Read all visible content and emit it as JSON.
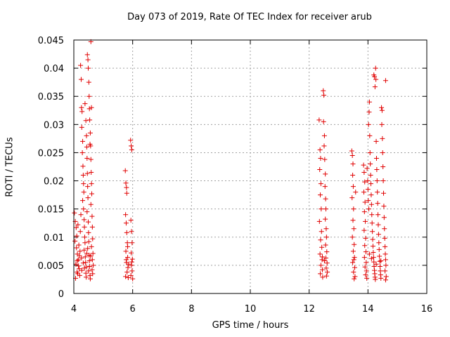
{
  "chart_data": {
    "type": "scatter",
    "title": "Day 073 of 2019, Rate Of TEC Index for receiver arub",
    "xlabel": "GPS time / hours",
    "ylabel": "ROTI / TECUs",
    "xlim": [
      4,
      16
    ],
    "ylim": [
      0,
      0.045
    ],
    "xticks": [
      "4",
      "6",
      "8",
      "10",
      "12",
      "14",
      "16"
    ],
    "yticks": [
      "0",
      "0.005",
      "0.01",
      "0.015",
      "0.02",
      "0.025",
      "0.03",
      "0.035",
      "0.04",
      "0.045"
    ],
    "grid": true,
    "marker": "+",
    "color": "#e00000",
    "series": [
      {
        "name": "ROTI",
        "points": [
          [
            4.02,
            0.0143
          ],
          [
            4.05,
            0.0128
          ],
          [
            4.08,
            0.0117
          ],
          [
            4.1,
            0.0102
          ],
          [
            4.04,
            0.0093
          ],
          [
            4.09,
            0.0081
          ],
          [
            4.12,
            0.007
          ],
          [
            4.15,
            0.006
          ],
          [
            4.07,
            0.0052
          ],
          [
            4.18,
            0.0044
          ],
          [
            4.11,
            0.0038
          ],
          [
            4.2,
            0.0032
          ],
          [
            4.06,
            0.0027
          ],
          [
            4.14,
            0.0122
          ],
          [
            4.17,
            0.0086
          ],
          [
            4.19,
            0.0067
          ],
          [
            4.22,
            0.011
          ],
          [
            4.24,
            0.014
          ],
          [
            4.23,
            0.0405
          ],
          [
            4.25,
            0.038
          ],
          [
            4.26,
            0.033
          ],
          [
            4.28,
            0.0323
          ],
          [
            4.27,
            0.0295
          ],
          [
            4.3,
            0.027
          ],
          [
            4.29,
            0.025
          ],
          [
            4.31,
            0.0226
          ],
          [
            4.32,
            0.021
          ],
          [
            4.33,
            0.0195
          ],
          [
            4.34,
            0.018
          ],
          [
            4.3,
            0.0165
          ],
          [
            4.33,
            0.015
          ],
          [
            4.35,
            0.0131
          ],
          [
            4.36,
            0.0118
          ],
          [
            4.37,
            0.01
          ],
          [
            4.38,
            0.009
          ],
          [
            4.35,
            0.0077
          ],
          [
            4.39,
            0.0065
          ],
          [
            4.4,
            0.0055
          ],
          [
            4.36,
            0.0045
          ],
          [
            4.41,
            0.0036
          ],
          [
            4.42,
            0.0029
          ],
          [
            4.38,
            0.0337
          ],
          [
            4.41,
            0.0307
          ],
          [
            4.43,
            0.028
          ],
          [
            4.44,
            0.026
          ],
          [
            4.45,
            0.024
          ],
          [
            4.46,
            0.0213
          ],
          [
            4.47,
            0.019
          ],
          [
            4.48,
            0.017
          ],
          [
            4.45,
            0.0145
          ],
          [
            4.49,
            0.0127
          ],
          [
            4.5,
            0.0108
          ],
          [
            4.51,
            0.0092
          ],
          [
            4.47,
            0.008
          ],
          [
            4.52,
            0.0068
          ],
          [
            4.53,
            0.0058
          ],
          [
            4.54,
            0.0048
          ],
          [
            4.5,
            0.004
          ],
          [
            4.55,
            0.0032
          ],
          [
            4.56,
            0.0026
          ],
          [
            4.46,
            0.0424
          ],
          [
            4.48,
            0.0415
          ],
          [
            4.49,
            0.04
          ],
          [
            4.51,
            0.0375
          ],
          [
            4.52,
            0.035
          ],
          [
            4.53,
            0.0328
          ],
          [
            4.54,
            0.0308
          ],
          [
            4.56,
            0.0285
          ],
          [
            4.57,
            0.0262
          ],
          [
            4.58,
            0.0238
          ],
          [
            4.59,
            0.0215
          ],
          [
            4.6,
            0.0195
          ],
          [
            4.61,
            0.0177
          ],
          [
            4.58,
            0.0158
          ],
          [
            4.62,
            0.0137
          ],
          [
            4.63,
            0.0118
          ],
          [
            4.64,
            0.0097
          ],
          [
            4.6,
            0.0083
          ],
          [
            4.65,
            0.0071
          ],
          [
            4.63,
            0.006
          ],
          [
            4.66,
            0.005
          ],
          [
            4.62,
            0.0042
          ],
          [
            4.64,
            0.0035
          ],
          [
            4.58,
            0.0447
          ],
          [
            4.6,
            0.033
          ],
          [
            4.55,
            0.0265
          ],
          [
            4.12,
            0.0058
          ],
          [
            4.16,
            0.0049
          ],
          [
            4.21,
            0.0075
          ],
          [
            4.26,
            0.0063
          ],
          [
            4.32,
            0.0054
          ],
          [
            4.44,
            0.0071
          ],
          [
            4.57,
            0.0066
          ],
          [
            4.13,
            0.0035
          ],
          [
            4.27,
            0.0041
          ],
          [
            4.43,
            0.0047
          ],
          [
            5.75,
            0.0218
          ],
          [
            5.77,
            0.0196
          ],
          [
            5.79,
            0.0188
          ],
          [
            5.8,
            0.0178
          ],
          [
            5.76,
            0.014
          ],
          [
            5.78,
            0.0125
          ],
          [
            5.8,
            0.0108
          ],
          [
            5.82,
            0.009
          ],
          [
            5.77,
            0.0075
          ],
          [
            5.83,
            0.0064
          ],
          [
            5.79,
            0.0055
          ],
          [
            5.84,
            0.0046
          ],
          [
            5.81,
            0.0038
          ],
          [
            5.76,
            0.003
          ],
          [
            5.85,
            0.0028
          ],
          [
            5.83,
            0.0083
          ],
          [
            5.78,
            0.006
          ],
          [
            5.86,
            0.0052
          ],
          [
            5.93,
            0.0272
          ],
          [
            5.95,
            0.0262
          ],
          [
            5.97,
            0.0255
          ],
          [
            5.94,
            0.013
          ],
          [
            5.96,
            0.011
          ],
          [
            5.98,
            0.009
          ],
          [
            5.95,
            0.0072
          ],
          [
            5.99,
            0.0061
          ],
          [
            5.96,
            0.005
          ],
          [
            5.98,
            0.004
          ],
          [
            5.94,
            0.0032
          ],
          [
            6.0,
            0.0026
          ],
          [
            5.97,
            0.0056
          ],
          [
            12.34,
            0.0308
          ],
          [
            12.37,
            0.0255
          ],
          [
            12.39,
            0.024
          ],
          [
            12.36,
            0.022
          ],
          [
            12.4,
            0.0195
          ],
          [
            12.38,
            0.0175
          ],
          [
            12.41,
            0.015
          ],
          [
            12.35,
            0.0128
          ],
          [
            12.42,
            0.011
          ],
          [
            12.39,
            0.0095
          ],
          [
            12.43,
            0.0082
          ],
          [
            12.37,
            0.007
          ],
          [
            12.44,
            0.006
          ],
          [
            12.4,
            0.005
          ],
          [
            12.45,
            0.0042
          ],
          [
            12.38,
            0.0035
          ],
          [
            12.46,
            0.0029
          ],
          [
            12.48,
            0.036
          ],
          [
            12.5,
            0.0352
          ],
          [
            12.49,
            0.0305
          ],
          [
            12.52,
            0.028
          ],
          [
            12.51,
            0.0262
          ],
          [
            12.53,
            0.0238
          ],
          [
            12.55,
            0.0212
          ],
          [
            12.54,
            0.019
          ],
          [
            12.56,
            0.0168
          ],
          [
            12.57,
            0.015
          ],
          [
            12.55,
            0.0132
          ],
          [
            12.58,
            0.0115
          ],
          [
            12.59,
            0.01
          ],
          [
            12.56,
            0.0086
          ],
          [
            12.6,
            0.0074
          ],
          [
            12.57,
            0.0063
          ],
          [
            12.61,
            0.0054
          ],
          [
            12.58,
            0.0045
          ],
          [
            12.62,
            0.0038
          ],
          [
            12.59,
            0.0031
          ],
          [
            12.45,
            0.0065
          ],
          [
            12.52,
            0.0058
          ],
          [
            13.45,
            0.0253
          ],
          [
            13.47,
            0.0245
          ],
          [
            13.49,
            0.023
          ],
          [
            13.48,
            0.021
          ],
          [
            13.5,
            0.019
          ],
          [
            13.46,
            0.017
          ],
          [
            13.51,
            0.015
          ],
          [
            13.49,
            0.013
          ],
          [
            13.52,
            0.0115
          ],
          [
            13.47,
            0.01
          ],
          [
            13.53,
            0.0087
          ],
          [
            13.5,
            0.0075
          ],
          [
            13.54,
            0.0064
          ],
          [
            13.48,
            0.0055
          ],
          [
            13.55,
            0.0046
          ],
          [
            13.51,
            0.0038
          ],
          [
            13.56,
            0.003
          ],
          [
            13.53,
            0.0026
          ],
          [
            13.58,
            0.018
          ],
          [
            13.52,
            0.006
          ],
          [
            13.85,
            0.0228
          ],
          [
            13.87,
            0.0215
          ],
          [
            13.89,
            0.0198
          ],
          [
            13.86,
            0.018
          ],
          [
            13.9,
            0.0162
          ],
          [
            13.88,
            0.0145
          ],
          [
            13.91,
            0.0128
          ],
          [
            13.87,
            0.0112
          ],
          [
            13.92,
            0.0098
          ],
          [
            13.89,
            0.0085
          ],
          [
            13.93,
            0.0074
          ],
          [
            13.88,
            0.0064
          ],
          [
            13.94,
            0.0055
          ],
          [
            13.9,
            0.0047
          ],
          [
            13.95,
            0.004
          ],
          [
            13.92,
            0.0033
          ],
          [
            13.96,
            0.0027
          ],
          [
            13.97,
            0.0222
          ],
          [
            13.99,
            0.02
          ],
          [
            14.0,
            0.0185
          ],
          [
            14.01,
            0.0165
          ],
          [
            14.03,
            0.015
          ],
          [
            14.02,
            0.03
          ],
          [
            14.04,
            0.0322
          ],
          [
            14.05,
            0.034
          ],
          [
            14.06,
            0.028
          ],
          [
            14.07,
            0.025
          ],
          [
            14.08,
            0.023
          ],
          [
            14.09,
            0.021
          ],
          [
            14.1,
            0.0195
          ],
          [
            14.11,
            0.0175
          ],
          [
            14.12,
            0.0158
          ],
          [
            14.13,
            0.014
          ],
          [
            14.14,
            0.0125
          ],
          [
            14.15,
            0.011
          ],
          [
            14.16,
            0.0096
          ],
          [
            14.17,
            0.0084
          ],
          [
            14.18,
            0.0073
          ],
          [
            14.19,
            0.0064
          ],
          [
            14.2,
            0.0056
          ],
          [
            14.21,
            0.0048
          ],
          [
            14.22,
            0.0041
          ],
          [
            14.23,
            0.0035
          ],
          [
            14.24,
            0.0029
          ],
          [
            14.25,
            0.0025
          ],
          [
            14.2,
            0.0388
          ],
          [
            14.22,
            0.0385
          ],
          [
            14.24,
            0.0367
          ],
          [
            14.26,
            0.04
          ],
          [
            14.27,
            0.038
          ],
          [
            14.28,
            0.027
          ],
          [
            14.29,
            0.024
          ],
          [
            14.3,
            0.022
          ],
          [
            14.31,
            0.02
          ],
          [
            14.32,
            0.018
          ],
          [
            14.33,
            0.016
          ],
          [
            14.34,
            0.014
          ],
          [
            14.35,
            0.0122
          ],
          [
            14.36,
            0.0105
          ],
          [
            14.37,
            0.009
          ],
          [
            14.38,
            0.0078
          ],
          [
            14.39,
            0.0066
          ],
          [
            14.4,
            0.0057
          ],
          [
            14.41,
            0.0048
          ],
          [
            14.42,
            0.004
          ],
          [
            14.43,
            0.0033
          ],
          [
            14.44,
            0.0027
          ],
          [
            14.46,
            0.033
          ],
          [
            14.48,
            0.0325
          ],
          [
            14.47,
            0.03
          ],
          [
            14.49,
            0.0275
          ],
          [
            14.5,
            0.025
          ],
          [
            14.51,
            0.0225
          ],
          [
            14.52,
            0.02
          ],
          [
            14.53,
            0.0178
          ],
          [
            14.54,
            0.0155
          ],
          [
            14.55,
            0.0135
          ],
          [
            14.56,
            0.0115
          ],
          [
            14.57,
            0.0098
          ],
          [
            14.58,
            0.0083
          ],
          [
            14.59,
            0.007
          ],
          [
            14.6,
            0.006
          ],
          [
            14.61,
            0.005
          ],
          [
            14.58,
            0.004
          ],
          [
            14.62,
            0.003
          ],
          [
            14.6,
            0.0024
          ],
          [
            14.6,
            0.0378
          ],
          [
            14.05,
            0.007
          ],
          [
            14.12,
            0.0062
          ],
          [
            14.28,
            0.0052
          ],
          [
            14.44,
            0.0058
          ]
        ]
      }
    ]
  }
}
